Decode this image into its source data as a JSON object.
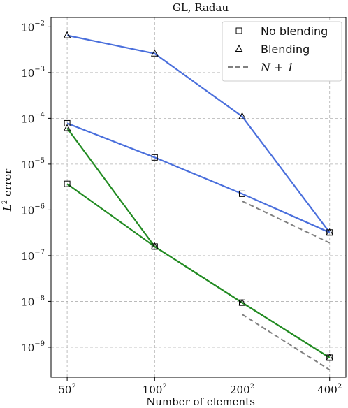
{
  "chart_data": {
    "type": "line",
    "title": "GL, Radau",
    "xlabel": "Number of elements",
    "ylabel_main": "L",
    "ylabel_sup": "2",
    "ylabel_rest": " error",
    "x_scale": "log2",
    "y_scale": "log10",
    "grid": true,
    "legend_position": "top-right",
    "x_ticks": [
      {
        "value": 50,
        "base": "50",
        "exp": "2"
      },
      {
        "value": 100,
        "base": "100",
        "exp": "2"
      },
      {
        "value": 200,
        "base": "200",
        "exp": "2"
      },
      {
        "value": 400,
        "base": "400",
        "exp": "2"
      }
    ],
    "y_ticks": [
      {
        "value": 1e-09,
        "base": "10",
        "exp": "−9"
      },
      {
        "value": 1e-08,
        "base": "10",
        "exp": "−8"
      },
      {
        "value": 1e-07,
        "base": "10",
        "exp": "−7"
      },
      {
        "value": 1e-06,
        "base": "10",
        "exp": "−6"
      },
      {
        "value": 1e-05,
        "base": "10",
        "exp": "−5"
      },
      {
        "value": 0.0001,
        "base": "10",
        "exp": "−4"
      },
      {
        "value": 0.001,
        "base": "10",
        "exp": "−3"
      },
      {
        "value": 0.01,
        "base": "10",
        "exp": "−2"
      }
    ],
    "ylim": [
      2.2e-10,
      0.016
    ],
    "xlim": [
      44,
      455
    ],
    "x": [
      50,
      100,
      200,
      400
    ],
    "series": [
      {
        "color": "#4a6fdc",
        "marker": "triangle",
        "values": [
          0.0065,
          0.0026,
          0.00011,
          3.2e-07
        ]
      },
      {
        "color": "#4a6fdc",
        "marker": "square",
        "values": [
          7.8e-05,
          1.4e-05,
          2.25e-06,
          3.2e-07
        ]
      },
      {
        "color": "#228b22",
        "marker": "triangle",
        "values": [
          6.1e-05,
          1.58e-07,
          9.4e-09,
          5.9e-10
        ]
      },
      {
        "color": "#228b22",
        "marker": "square",
        "values": [
          3.7e-06,
          1.58e-07,
          9.4e-09,
          5.9e-10
        ]
      }
    ],
    "reference_lines": [
      {
        "x": [
          200,
          400
        ],
        "y": [
          1.55e-06,
          1.9e-07
        ],
        "color": "#808080",
        "style": "dashed"
      },
      {
        "x": [
          200,
          400
        ],
        "y": [
          5.2e-09,
          3.2e-10
        ],
        "color": "#808080",
        "style": "dashed"
      }
    ],
    "legend": [
      {
        "marker": "square",
        "label": "No blending"
      },
      {
        "marker": "triangle",
        "label": "Blending"
      },
      {
        "marker": "dashed-line",
        "label": "N + 1"
      }
    ]
  }
}
